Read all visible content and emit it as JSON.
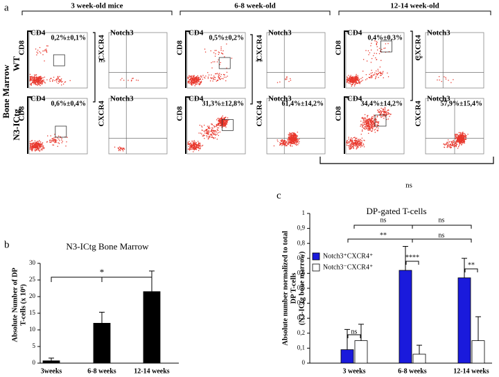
{
  "panel_labels": [
    "a",
    "b",
    "c"
  ],
  "flow": {
    "groups": [
      "3 week-old mice",
      "6-8 week-old",
      "12-14 week-old"
    ],
    "row_labels": {
      "tissue": "Bone Marrow",
      "rows": [
        "WT",
        "N3-ICtg"
      ]
    },
    "panels": [
      {
        "top": "CD4",
        "side": "CD8",
        "stat": "0,2%±0,1%"
      },
      {
        "top": "Notch3",
        "side": "CXCR4",
        "stat": null
      },
      {
        "top": "CD4",
        "side": "CD8",
        "stat": "0,5%±0,2%"
      },
      {
        "top": "Notch3",
        "side": "CXCR4",
        "stat": null
      },
      {
        "top": "CD4",
        "side": "CD8",
        "stat": "0,4%±0,3%"
      },
      {
        "top": "Notch3",
        "side": "CXCR4",
        "stat": null
      },
      {
        "top": "CD4",
        "side": "CD8",
        "stat": "0,6%±0,4%"
      },
      {
        "top": "Notch3",
        "side": "CXCR4",
        "stat": null
      },
      {
        "top": "CD4",
        "side": "CD8",
        "stat": "31,3%±12,8%"
      },
      {
        "top": "Notch3",
        "side": "CXCR4",
        "stat": "61,4%±14,2%"
      },
      {
        "top": "CD4",
        "side": "CD8",
        "stat": "34,4%±14,2%"
      },
      {
        "top": "Notch3",
        "side": "CXCR4",
        "stat": "57,9%±15,4%"
      }
    ],
    "significance": [
      "ns",
      "**",
      "**",
      "ns"
    ]
  },
  "chart_data": [
    {
      "type": "bar",
      "title": "N3-ICtg Bone Marrow",
      "ylabel": [
        "Absolute Number of DP",
        "T-cells (x 10⁶)"
      ],
      "categories": [
        "3weeks",
        "6-8 weeks",
        "12-14 weeks"
      ],
      "series": [
        {
          "name": null,
          "color": "#000000",
          "values": [
            0.7,
            12,
            21.5
          ],
          "errors": [
            0.8,
            3.3,
            6.2
          ]
        }
      ],
      "ylim": [
        0,
        30
      ],
      "yticks": [
        0,
        5,
        10,
        15,
        20,
        25,
        30
      ],
      "annotations": [
        "*"
      ]
    },
    {
      "type": "bar",
      "title": "DP-gated T-cells",
      "ylabel": [
        "Absolute number normalized to total",
        "DP T-cells",
        "(N3-ICtg bone marrow)"
      ],
      "categories": [
        "3 weeks",
        "6-8 weeks",
        "12-14 weeks"
      ],
      "series": [
        {
          "name": "Notch3⁺CXCR4⁺",
          "color": "#1a1adc",
          "values": [
            0.09,
            0.62,
            0.57
          ],
          "errors": [
            0.135,
            0.16,
            0.13
          ]
        },
        {
          "name": "Notch3⁻CXCR4⁺",
          "color": "#ffffff",
          "values": [
            0.15,
            0.06,
            0.15
          ],
          "errors": [
            0.11,
            0.06,
            0.16
          ]
        }
      ],
      "ylim": [
        0,
        1
      ],
      "yticks": [
        0,
        {
          "value": 0.1,
          "label": "0,1"
        },
        {
          "value": 0.2,
          "label": "0,2"
        },
        {
          "value": 0.3,
          "label": "0,3"
        },
        {
          "value": 0.4,
          "label": "0,4"
        },
        {
          "value": 0.5,
          "label": "0,5"
        },
        {
          "value": 0.6,
          "label": "0,6"
        },
        {
          "value": 0.7,
          "label": "0,7"
        },
        {
          "value": 0.8,
          "label": "0,8"
        },
        {
          "value": 0.9,
          "label": "0,9"
        },
        1
      ],
      "legend": "upper left",
      "annotations": [
        "ns",
        "ns",
        "**",
        "ns",
        "ns",
        "****",
        "**"
      ]
    }
  ]
}
